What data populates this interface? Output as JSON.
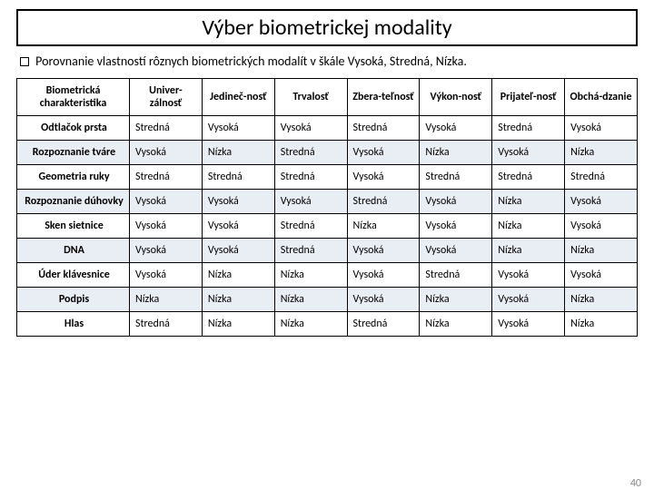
{
  "title": "Výber biometrickej modality",
  "subtitle": "Porovnanie vlastností rôznych biometrických modalít v škále Vysoká, Stredná, Nízka.",
  "page_number": "40",
  "table": {
    "columns": [
      "Biometrická charakteristika",
      "Univer-zálnosť",
      "Jedineč-nosť",
      "Trvalosť",
      "Zbera-teľnosť",
      "Výkon-nosť",
      "Prijateľ-nosť",
      "Obchá-dzanie"
    ],
    "rows": [
      [
        "Odtlačok prsta",
        "Stredná",
        "Vysoká",
        "Vysoká",
        "Stredná",
        "Vysoká",
        "Stredná",
        "Vysoká"
      ],
      [
        "Rozpoznanie tváre",
        "Vysoká",
        "Nízka",
        "Stredná",
        "Vysoká",
        "Nízka",
        "Vysoká",
        "Nízka"
      ],
      [
        "Geometria ruky",
        "Stredná",
        "Stredná",
        "Stredná",
        "Vysoká",
        "Stredná",
        "Stredná",
        "Stredná"
      ],
      [
        "Rozpoznanie dúhovky",
        "Vysoká",
        "Vysoká",
        "Vysoká",
        "Stredná",
        "Vysoká",
        "Nízka",
        "Vysoká"
      ],
      [
        "Sken sietnice",
        "Vysoká",
        "Vysoká",
        "Stredná",
        "Nízka",
        "Vysoká",
        "Nízka",
        "Vysoká"
      ],
      [
        "DNA",
        "Vysoká",
        "Vysoká",
        "Stredná",
        "Vysoká",
        "Vysoká",
        "Nízka",
        "Nízka"
      ],
      [
        "Úder klávesnice",
        "Vysoká",
        "Nízka",
        "Nízka",
        "Vysoká",
        "Stredná",
        "Vysoká",
        "Vysoká"
      ],
      [
        "Podpis",
        "Nízka",
        "Nízka",
        "Nízka",
        "Vysoká",
        "Nízka",
        "Vysoká",
        "Nízka"
      ],
      [
        "Hlas",
        "Stredná",
        "Nízka",
        "Nízka",
        "Stredná",
        "Nízka",
        "Vysoká",
        "Nízka"
      ]
    ]
  }
}
